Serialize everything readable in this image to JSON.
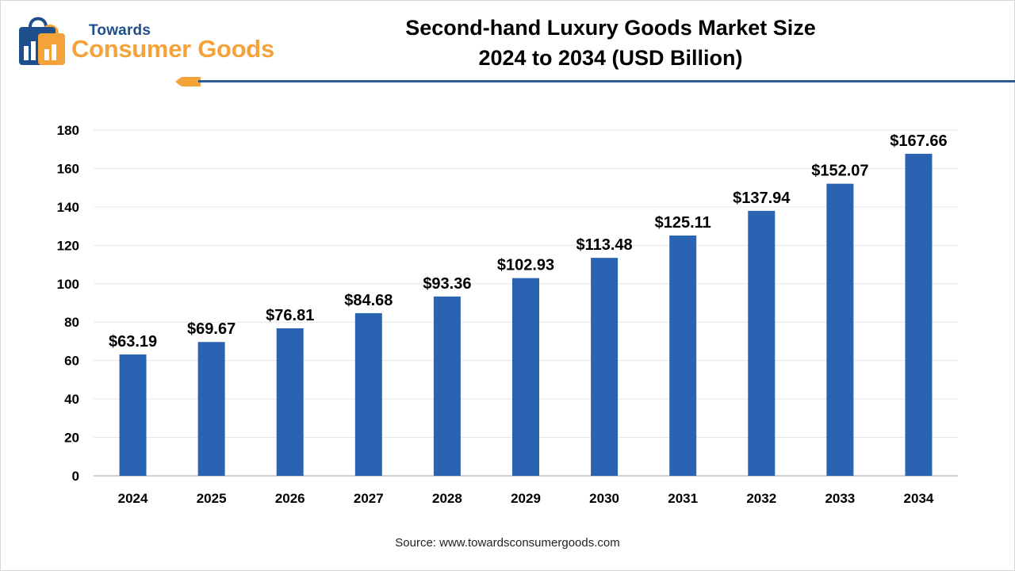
{
  "brand": {
    "top": "Towards",
    "main": "Consumer Goods"
  },
  "title_line1": "Second-hand Luxury Goods Market Size",
  "title_line2": "2024 to 2034 (USD Billion)",
  "source": "Source: www.towardsconsumergoods.com",
  "colors": {
    "bar": "#2b63b3",
    "grid": "#e6e6e6",
    "header_rule": "#2d5b94",
    "brand_blue": "#1f4e8c",
    "brand_orange": "#f4a23a"
  },
  "chart_data": {
    "type": "bar",
    "categories": [
      "2024",
      "2025",
      "2026",
      "2027",
      "2028",
      "2029",
      "2030",
      "2031",
      "2032",
      "2033",
      "2034"
    ],
    "values": [
      63.19,
      69.67,
      76.81,
      84.68,
      93.36,
      102.93,
      113.48,
      125.11,
      137.94,
      152.07,
      167.66
    ],
    "data_labels": [
      "$63.19",
      "$69.67",
      "$76.81",
      "$84.68",
      "$93.36",
      "$102.93",
      "$113.48",
      "$125.11",
      "$137.94",
      "$152.07",
      "$167.66"
    ],
    "yticks": [
      0,
      20,
      40,
      60,
      80,
      100,
      120,
      140,
      160,
      180
    ],
    "ylim": [
      0,
      180
    ],
    "grid": true,
    "title": "Second-hand Luxury Goods Market Size 2024 to 2034 (USD Billion)",
    "xlabel": "",
    "ylabel": ""
  }
}
